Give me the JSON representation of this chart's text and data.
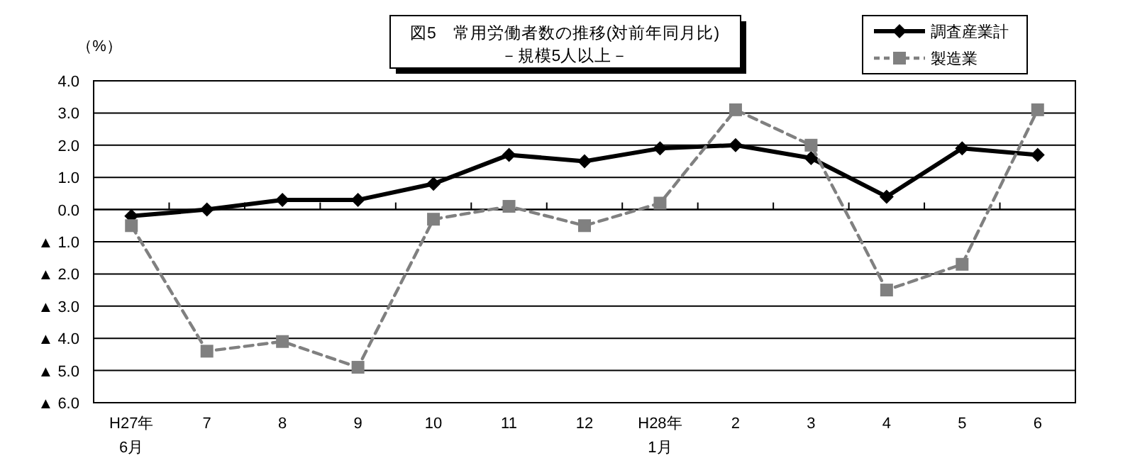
{
  "chart_data": {
    "type": "line",
    "title": "図5　常用労働者数の推移(対前年同月比)",
    "subtitle": "－規模5人以上－",
    "ylabel": "（%）",
    "categories": [
      "H27年\n6月",
      "7",
      "8",
      "9",
      "10",
      "11",
      "12",
      "H28年\n1月",
      "2",
      "3",
      "4",
      "5",
      "6"
    ],
    "series": [
      {
        "name": "調査産業計",
        "color": "#000000",
        "marker": "diamond",
        "line_style": "solid",
        "values": [
          -0.2,
          0.0,
          0.3,
          0.3,
          0.8,
          1.7,
          1.5,
          1.9,
          2.0,
          1.6,
          0.4,
          1.9,
          1.7
        ]
      },
      {
        "name": "製造業",
        "color": "#808080",
        "marker": "square",
        "line_style": "dashed",
        "values": [
          -0.5,
          -4.4,
          -4.1,
          -4.9,
          -0.3,
          0.1,
          -0.5,
          0.2,
          3.1,
          2.0,
          -2.5,
          -1.7,
          3.1
        ]
      }
    ],
    "ylim": [
      -6,
      4
    ],
    "yticks": [
      {
        "value": -6,
        "label": "▲ 6.0"
      },
      {
        "value": -5,
        "label": "▲ 5.0"
      },
      {
        "value": -4,
        "label": "▲ 4.0"
      },
      {
        "value": -3,
        "label": "▲ 3.0"
      },
      {
        "value": -2,
        "label": "▲ 2.0"
      },
      {
        "value": -1,
        "label": "▲ 1.0"
      },
      {
        "value": 0,
        "label": "0.0"
      },
      {
        "value": 1,
        "label": "1.0"
      },
      {
        "value": 2,
        "label": "2.0"
      },
      {
        "value": 3,
        "label": "3.0"
      },
      {
        "value": 4,
        "label": "4.0"
      }
    ],
    "grid": "y",
    "legend": "top right"
  }
}
